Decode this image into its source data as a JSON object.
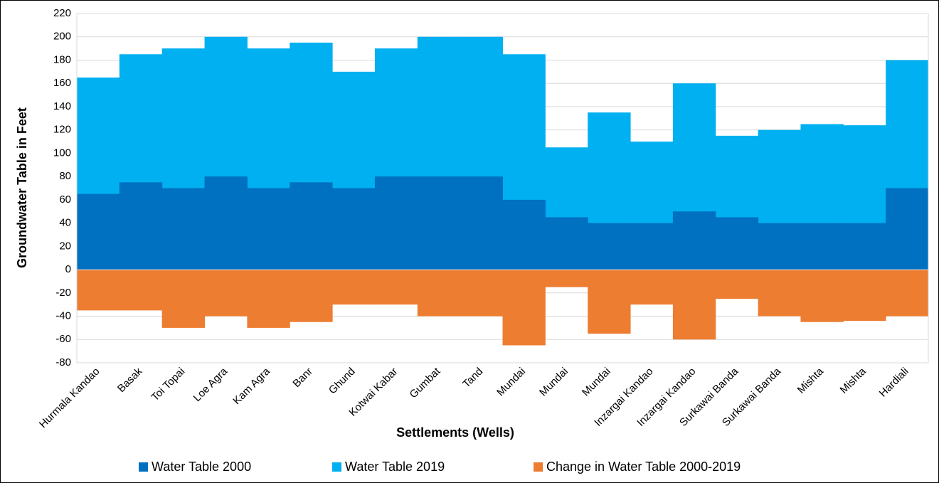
{
  "chart_data": {
    "type": "bar",
    "x_label": "Settlements (Wells)",
    "y_label": "Groundwater Table in Feet",
    "categories": [
      "Hurmala Kandao",
      "Basak",
      "Toi Topai",
      "Loe Agra",
      "Kam Agra",
      "Banr",
      "Ghund",
      "Kotwai Kabar",
      "Gumbat",
      "Tand",
      "Mundai",
      "Mundai",
      "Mundai",
      "Inzargai Kandao",
      "Inzargai Kandao",
      "Surkawai Banda",
      "Surkawai Banda",
      "Mishta",
      "Mishta",
      "Hardiali"
    ],
    "series": [
      {
        "name": "Water Table 2000",
        "color": "#0070c0",
        "values": [
          65,
          75,
          70,
          80,
          70,
          75,
          70,
          80,
          80,
          80,
          60,
          45,
          40,
          40,
          50,
          45,
          40,
          40,
          40,
          70
        ]
      },
      {
        "name": "Water Table 2019",
        "color": "#00b0f0",
        "values": [
          165,
          185,
          190,
          200,
          190,
          195,
          170,
          190,
          200,
          200,
          185,
          105,
          135,
          110,
          160,
          115,
          120,
          125,
          124,
          180
        ]
      },
      {
        "name": "Change in Water Table 2000-2019",
        "color": "#ed7d31",
        "values": [
          -35,
          -35,
          -50,
          -40,
          -50,
          -45,
          -30,
          -30,
          -40,
          -40,
          -65,
          -15,
          -55,
          -30,
          -60,
          -25,
          -40,
          -45,
          -44,
          -40
        ]
      }
    ],
    "ylim": [
      -80,
      220
    ],
    "yticks": [
      -80,
      -60,
      -40,
      -20,
      0,
      20,
      40,
      60,
      80,
      100,
      120,
      140,
      160,
      180,
      200,
      220
    ],
    "grid": true
  }
}
